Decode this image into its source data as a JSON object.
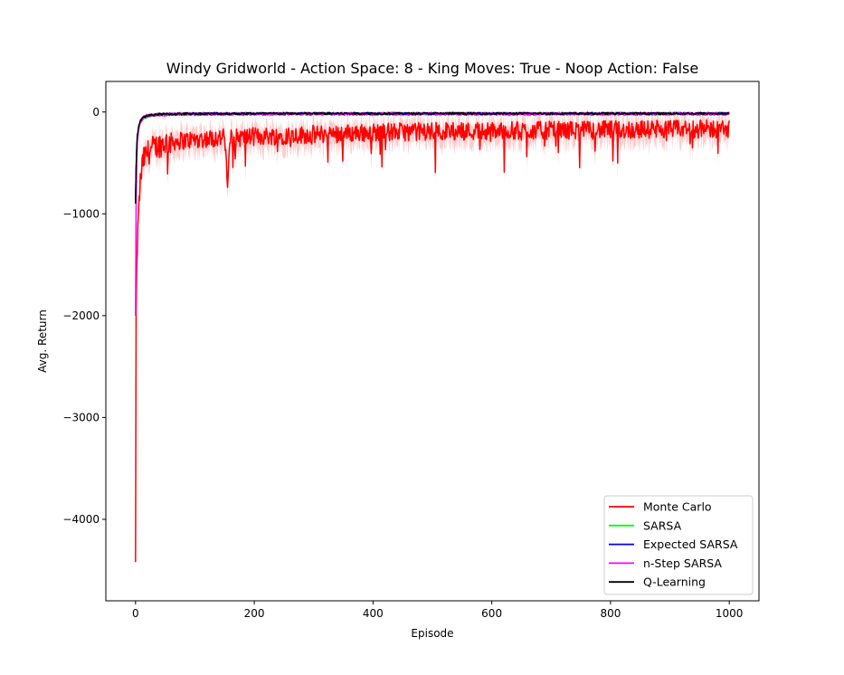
{
  "chart_data": {
    "type": "line",
    "title": "Windy Gridworld - Action Space: 8 - King Moves: True - Noop Action: False",
    "xlabel": "Episode",
    "ylabel": "Avg. Return",
    "xlim": [
      -50,
      1050
    ],
    "ylim": [
      -4800,
      300
    ],
    "xticks": [
      0,
      200,
      400,
      600,
      800,
      1000
    ],
    "yticks": [
      -4000,
      -3000,
      -2000,
      -1000,
      0
    ],
    "xtick_labels": [
      "0",
      "200",
      "400",
      "600",
      "800",
      "1000"
    ],
    "ytick_labels": [
      "−4000",
      "−3000",
      "−2000",
      "−1000",
      "0"
    ],
    "grid": false,
    "legend_position": "lower-right",
    "series": [
      {
        "name": "Monte Carlo",
        "color": "#ff0000",
        "band": true,
        "x": [
          0,
          1,
          2,
          3,
          4,
          5,
          6,
          8,
          10,
          12,
          15,
          20,
          30,
          50,
          80,
          100,
          150,
          155,
          160,
          200,
          250,
          300,
          400,
          500,
          600,
          700,
          800,
          900,
          1000
        ],
        "values": [
          -4420,
          -1950,
          -1500,
          -1300,
          -1150,
          -1050,
          -900,
          -700,
          -600,
          -500,
          -450,
          -400,
          -350,
          -300,
          -280,
          -270,
          -250,
          -690,
          -260,
          -240,
          -230,
          -220,
          -200,
          -190,
          -185,
          -180,
          -175,
          -170,
          -165
        ]
      },
      {
        "name": "SARSA",
        "color": "#00ff00",
        "band": true,
        "x": [
          0,
          1,
          2,
          3,
          5,
          8,
          12,
          20,
          40,
          80,
          150,
          300,
          1000
        ],
        "values": [
          -900,
          -600,
          -400,
          -280,
          -180,
          -110,
          -70,
          -40,
          -25,
          -20,
          -17,
          -16,
          -15
        ]
      },
      {
        "name": "Expected SARSA",
        "color": "#0000ff",
        "band": true,
        "x": [
          0,
          1,
          2,
          3,
          5,
          8,
          12,
          20,
          40,
          80,
          150,
          300,
          1000
        ],
        "values": [
          -880,
          -580,
          -380,
          -260,
          -170,
          -100,
          -65,
          -38,
          -24,
          -19,
          -17,
          -16,
          -15
        ]
      },
      {
        "name": "n-Step SARSA",
        "color": "#ff00ff",
        "band": true,
        "x": [
          0,
          1,
          2,
          3,
          5,
          8,
          12,
          20,
          40,
          80,
          150,
          300,
          1000
        ],
        "values": [
          -2000,
          -900,
          -500,
          -300,
          -180,
          -100,
          -60,
          -35,
          -25,
          -20,
          -18,
          -17,
          -16
        ]
      },
      {
        "name": "Q-Learning",
        "color": "#000000",
        "band": true,
        "x": [
          0,
          1,
          2,
          3,
          5,
          8,
          12,
          20,
          40,
          80,
          150,
          300,
          1000
        ],
        "values": [
          -900,
          -550,
          -350,
          -230,
          -150,
          -90,
          -55,
          -35,
          -22,
          -18,
          -16,
          -15,
          -15
        ]
      }
    ]
  }
}
